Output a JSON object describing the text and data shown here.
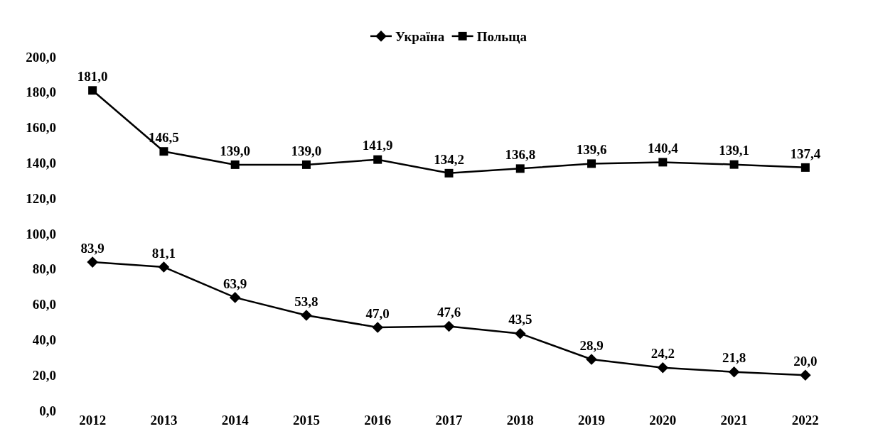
{
  "chart_data": {
    "type": "line",
    "categories": [
      "2012",
      "2013",
      "2014",
      "2015",
      "2016",
      "2017",
      "2018",
      "2019",
      "2020",
      "2021",
      "2022"
    ],
    "series": [
      {
        "name": "Україна",
        "color": "#000000",
        "marker": "diamond",
        "values": [
          83.9,
          81.1,
          63.9,
          53.8,
          47.0,
          47.6,
          43.5,
          28.9,
          24.2,
          21.8,
          20.0
        ],
        "value_labels": [
          "83,9",
          "81,1",
          "63,9",
          "53,8",
          "47,0",
          "47,6",
          "43,5",
          "28,9",
          "24,2",
          "21,8",
          "20,0"
        ]
      },
      {
        "name": "Польща",
        "color": "#000000",
        "marker": "square",
        "values": [
          181.0,
          146.5,
          139.0,
          139.0,
          141.9,
          134.2,
          136.8,
          139.6,
          140.4,
          139.1,
          137.4
        ],
        "value_labels": [
          "181,0",
          "146,5",
          "139,0",
          "139,0",
          "141,9",
          "134,2",
          "136,8",
          "139,6",
          "140,4",
          "139,1",
          "137,4"
        ]
      }
    ],
    "ylim": [
      0,
      200
    ],
    "yticks": [
      {
        "value": 0,
        "label": "0,0"
      },
      {
        "value": 20,
        "label": "20,0"
      },
      {
        "value": 40,
        "label": "40,0"
      },
      {
        "value": 60,
        "label": "60,0"
      },
      {
        "value": 80,
        "label": "80,0"
      },
      {
        "value": 100,
        "label": "100,0"
      },
      {
        "value": 120,
        "label": "120,0"
      },
      {
        "value": 140,
        "label": "140,0"
      },
      {
        "value": 160,
        "label": "160,0"
      },
      {
        "value": 180,
        "label": "180,0"
      },
      {
        "value": 200,
        "label": "200,0"
      }
    ],
    "legend": "top",
    "line_style": "solid"
  }
}
